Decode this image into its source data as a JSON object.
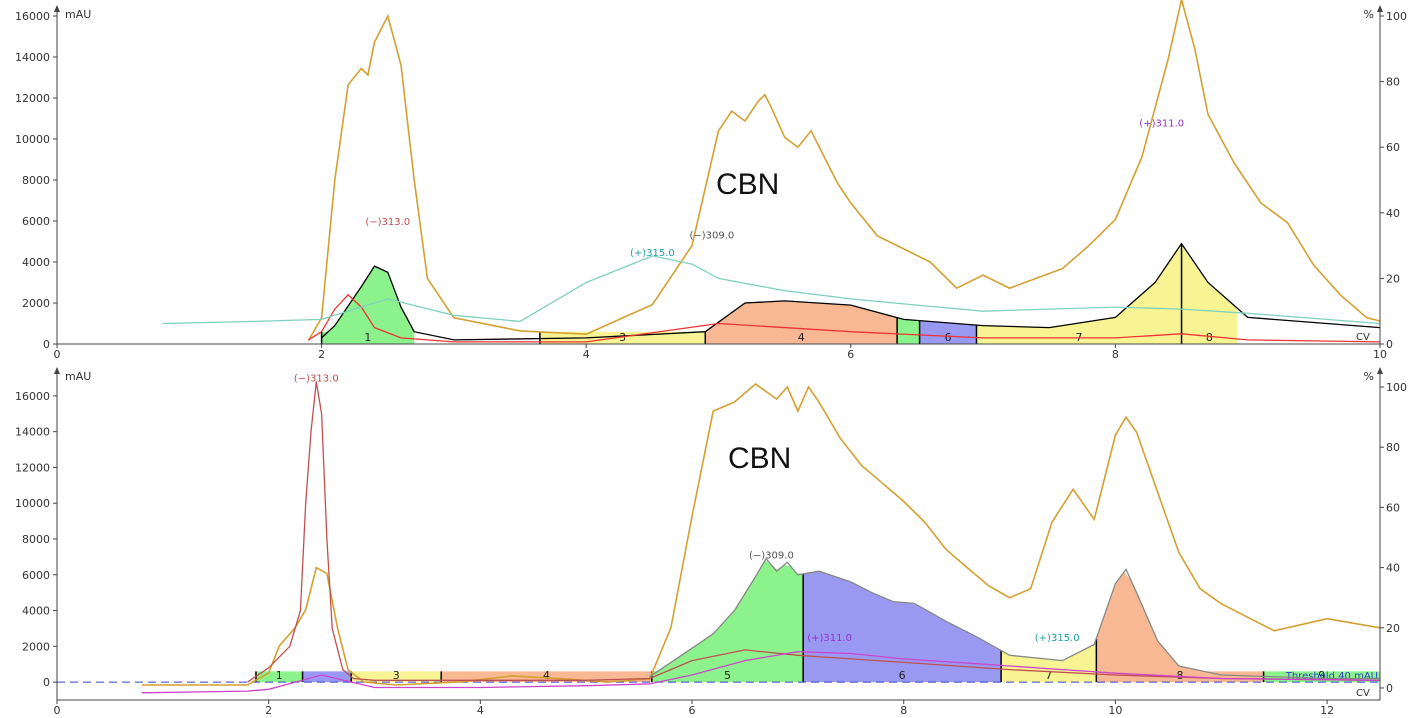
{
  "chart_data": [
    {
      "type": "area",
      "title": "",
      "annotation": "CBN",
      "y_unit_left": "mAU",
      "y_unit_right": "%",
      "x_unit": "CV",
      "xlim": [
        0,
        10
      ],
      "ylim_left": [
        0,
        16000
      ],
      "ylim_right": [
        0,
        100
      ],
      "x_ticks": [
        0,
        2,
        4,
        6,
        8,
        10
      ],
      "y_ticks_left": [
        0,
        2000,
        4000,
        6000,
        8000,
        10000,
        12000,
        14000,
        16000
      ],
      "y_ticks_right": [
        0,
        20,
        40,
        60,
        80,
        100
      ],
      "threshold_label": "",
      "peak_labels": [
        {
          "text": "(−)313.0",
          "x": 2.5,
          "y": 5800,
          "color": "#c0504d"
        },
        {
          "text": "(+)315.0",
          "x": 4.5,
          "y": 4300,
          "color": "#20a0a0"
        },
        {
          "text": "(−)309.0",
          "x": 4.95,
          "y": 5150,
          "color": "#555555"
        },
        {
          "text": "(+)311.0",
          "x": 8.35,
          "y": 10600,
          "color": "#9933cc"
        }
      ],
      "fractions": [
        {
          "label": "1",
          "start": 2.0,
          "end": 2.7,
          "color": "#66ee66"
        },
        {
          "label": "3",
          "start": 3.65,
          "end": 4.9,
          "color": "#f5f070"
        },
        {
          "label": "4",
          "start": 4.9,
          "end": 6.35,
          "color": "#f5a070"
        },
        {
          "label": "",
          "start": 6.35,
          "end": 6.52,
          "color": "#66ee66"
        },
        {
          "label": "6",
          "start": 6.52,
          "end": 6.95,
          "color": "#7777ee"
        },
        {
          "label": "7",
          "start": 6.95,
          "end": 8.5,
          "color": "#f5f070"
        },
        {
          "label": "8",
          "start": 8.5,
          "end": 8.92,
          "color": "#f5f070"
        }
      ],
      "series": [
        {
          "name": "",
          "color": "#d4a030",
          "axis": "right",
          "x": [
            1.9,
            2.0,
            2.1,
            2.2,
            2.3,
            2.35,
            2.4,
            2.5,
            2.6,
            2.7,
            2.8,
            3.0,
            3.5,
            4.0,
            4.5,
            4.8,
            5.0,
            5.1,
            5.2,
            5.3,
            5.35,
            5.4,
            5.5,
            5.6,
            5.7,
            5.8,
            5.9,
            6.0,
            6.2,
            6.4,
            6.6,
            6.8,
            7.0,
            7.2,
            7.4,
            7.6,
            7.8,
            8.0,
            8.2,
            8.4,
            8.5,
            8.6,
            8.7,
            8.9,
            9.1,
            9.3,
            9.5,
            9.7,
            9.9,
            10.0
          ],
          "y": [
            1,
            8,
            50,
            79,
            84,
            82,
            92,
            100,
            85,
            50,
            20,
            8,
            4,
            3,
            12,
            30,
            65,
            71,
            68,
            74,
            76,
            72,
            63,
            60,
            65,
            57,
            49,
            43,
            33,
            29,
            25,
            17,
            21,
            17,
            20,
            23,
            30,
            38,
            57,
            87,
            105,
            90,
            70,
            55,
            43,
            37,
            24,
            15,
            8,
            7
          ]
        },
        {
          "name": "",
          "color": "#000000",
          "axis": "left",
          "x": [
            2.0,
            2.1,
            2.3,
            2.4,
            2.5,
            2.6,
            2.7,
            3.0,
            4.0,
            4.9,
            5.2,
            5.5,
            6.0,
            6.4,
            7.0,
            7.5,
            8.0,
            8.3,
            8.5,
            8.7,
            9.0,
            10.0
          ],
          "y": [
            300,
            900,
            2800,
            3800,
            3500,
            1800,
            600,
            200,
            300,
            600,
            2000,
            2100,
            1900,
            1200,
            900,
            800,
            1300,
            3000,
            4900,
            3000,
            1300,
            800
          ]
        },
        {
          "name": "",
          "color": "#ee3333",
          "axis": "left",
          "x": [
            1.9,
            2.0,
            2.1,
            2.2,
            2.3,
            2.4,
            2.6,
            3.0,
            4.0,
            5.0,
            6.0,
            7.0,
            8.0,
            8.5,
            9.0,
            10.0
          ],
          "y": [
            200,
            600,
            1700,
            2400,
            1800,
            800,
            300,
            100,
            100,
            1000,
            600,
            300,
            300,
            500,
            200,
            100
          ]
        },
        {
          "name": "",
          "color": "#80d0c0",
          "axis": "left",
          "x": [
            0.8,
            1.5,
            2.0,
            2.5,
            3.0,
            3.5,
            4.0,
            4.5,
            4.8,
            5.0,
            5.5,
            6.0,
            6.5,
            7.0,
            7.5,
            8.0,
            8.5,
            9.0,
            10.0
          ],
          "y": [
            1000,
            1100,
            1200,
            2200,
            1400,
            1100,
            3000,
            4300,
            3900,
            3200,
            2600,
            2200,
            1900,
            1600,
            1700,
            1800,
            1700,
            1500,
            1000
          ]
        }
      ]
    },
    {
      "type": "area",
      "title": "",
      "annotation": "CBN",
      "y_unit_left": "mAU",
      "y_unit_right": "%",
      "x_unit": "CV",
      "xlim": [
        0,
        12.5
      ],
      "ylim_left": [
        -1000,
        17000
      ],
      "ylim_right": [
        -4,
        103
      ],
      "x_ticks": [
        0,
        2,
        4,
        6,
        8,
        10,
        12
      ],
      "y_ticks_left": [
        0,
        2000,
        4000,
        6000,
        8000,
        10000,
        12000,
        14000,
        16000
      ],
      "y_ticks_right": [
        0,
        20,
        40,
        60,
        80,
        100
      ],
      "threshold_label": "Threshold 40 mAU",
      "peak_labels": [
        {
          "text": "(−)313.0",
          "x": 2.45,
          "y": 16800,
          "color": "#c0504d"
        },
        {
          "text": "(−)309.0",
          "x": 6.75,
          "y": 6900,
          "color": "#555555"
        },
        {
          "text": "(+)311.0",
          "x": 7.3,
          "y": 2300,
          "color": "#9933cc"
        },
        {
          "text": "(+)315.0",
          "x": 9.45,
          "y": 2300,
          "color": "#20a0a0"
        }
      ],
      "fractions": [
        {
          "label": "1",
          "start": 1.88,
          "end": 2.32,
          "color": "#66ee66"
        },
        {
          "label": "",
          "start": 2.32,
          "end": 2.78,
          "color": "#7777ee"
        },
        {
          "label": "3",
          "start": 2.78,
          "end": 3.63,
          "color": "#f5f070"
        },
        {
          "label": "4",
          "start": 3.63,
          "end": 5.62,
          "color": "#f5a070"
        },
        {
          "label": "5",
          "start": 5.62,
          "end": 7.05,
          "color": "#66ee66"
        },
        {
          "label": "6",
          "start": 7.05,
          "end": 8.92,
          "color": "#7777ee"
        },
        {
          "label": "7",
          "start": 8.92,
          "end": 9.82,
          "color": "#f5f070"
        },
        {
          "label": "8",
          "start": 9.82,
          "end": 11.4,
          "color": "#f5a070"
        },
        {
          "label": "9",
          "start": 11.4,
          "end": 12.5,
          "color": "#66ee66"
        }
      ],
      "series": [
        {
          "name": "",
          "color": "#d4a030",
          "axis": "right",
          "x": [
            0.8,
            1.8,
            2.0,
            2.1,
            2.25,
            2.35,
            2.45,
            2.55,
            2.65,
            2.75,
            2.9,
            3.2,
            3.8,
            4.3,
            4.8,
            5.2,
            5.6,
            5.8,
            6.0,
            6.2,
            6.4,
            6.6,
            6.8,
            6.9,
            7.0,
            7.1,
            7.2,
            7.4,
            7.6,
            7.8,
            8.0,
            8.2,
            8.4,
            8.6,
            8.8,
            9.0,
            9.2,
            9.4,
            9.6,
            9.8,
            10.0,
            10.1,
            10.2,
            10.4,
            10.6,
            10.8,
            11.0,
            11.5,
            12.0,
            12.5
          ],
          "y": [
            1,
            1,
            5,
            14,
            20,
            26,
            40,
            38,
            20,
            6,
            2,
            1,
            2,
            4,
            3,
            2,
            3,
            20,
            57,
            92,
            95,
            101,
            96,
            100,
            92,
            100,
            95,
            83,
            74,
            68,
            62,
            55,
            46,
            40,
            34,
            30,
            33,
            55,
            66,
            56,
            84,
            90,
            85,
            65,
            45,
            33,
            28,
            19,
            23,
            20
          ]
        },
        {
          "name": "",
          "color": "#c05050",
          "axis": "left",
          "x": [
            1.8,
            2.0,
            2.2,
            2.3,
            2.35,
            2.4,
            2.45,
            2.5,
            2.55,
            2.6,
            2.7,
            2.8,
            3.0,
            4.0,
            5.0,
            5.6,
            6.0,
            6.5,
            7.0,
            7.5,
            8.0,
            8.5,
            9.0,
            10.0,
            11.0,
            12.5
          ],
          "y": [
            0,
            800,
            2000,
            4000,
            10000,
            14000,
            16800,
            15000,
            8000,
            3000,
            700,
            200,
            100,
            100,
            100,
            200,
            1200,
            1800,
            1500,
            1300,
            1100,
            900,
            700,
            400,
            200,
            100
          ]
        },
        {
          "name": "",
          "color": "#888888",
          "axis": "left",
          "x": [
            5.6,
            5.9,
            6.2,
            6.4,
            6.6,
            6.7,
            6.8,
            6.9,
            7.0,
            7.2,
            7.5,
            7.7,
            7.9,
            8.1,
            8.4,
            8.7,
            9.0,
            9.5,
            9.8,
            10.0,
            10.1,
            10.2,
            10.4,
            10.6,
            11.0,
            12.0,
            12.5
          ],
          "y": [
            300,
            1500,
            2700,
            4000,
            5900,
            6900,
            6200,
            6700,
            6000,
            6200,
            5600,
            5000,
            4500,
            4400,
            3400,
            2500,
            1500,
            1200,
            2100,
            5500,
            6300,
            5000,
            2300,
            900,
            400,
            200,
            200
          ]
        },
        {
          "name": "",
          "color": "#cc44cc",
          "axis": "left",
          "x": [
            0.8,
            1.8,
            2.0,
            2.5,
            3.0,
            4.0,
            5.0,
            5.6,
            6.0,
            6.5,
            7.0,
            7.5,
            8.0,
            8.5,
            9.0,
            9.5,
            10.0,
            11.0,
            12.5
          ],
          "y": [
            -600,
            -500,
            -400,
            400,
            -300,
            -300,
            -200,
            -100,
            400,
            1200,
            1700,
            1600,
            1300,
            1100,
            900,
            700,
            500,
            200,
            100
          ]
        }
      ]
    }
  ]
}
